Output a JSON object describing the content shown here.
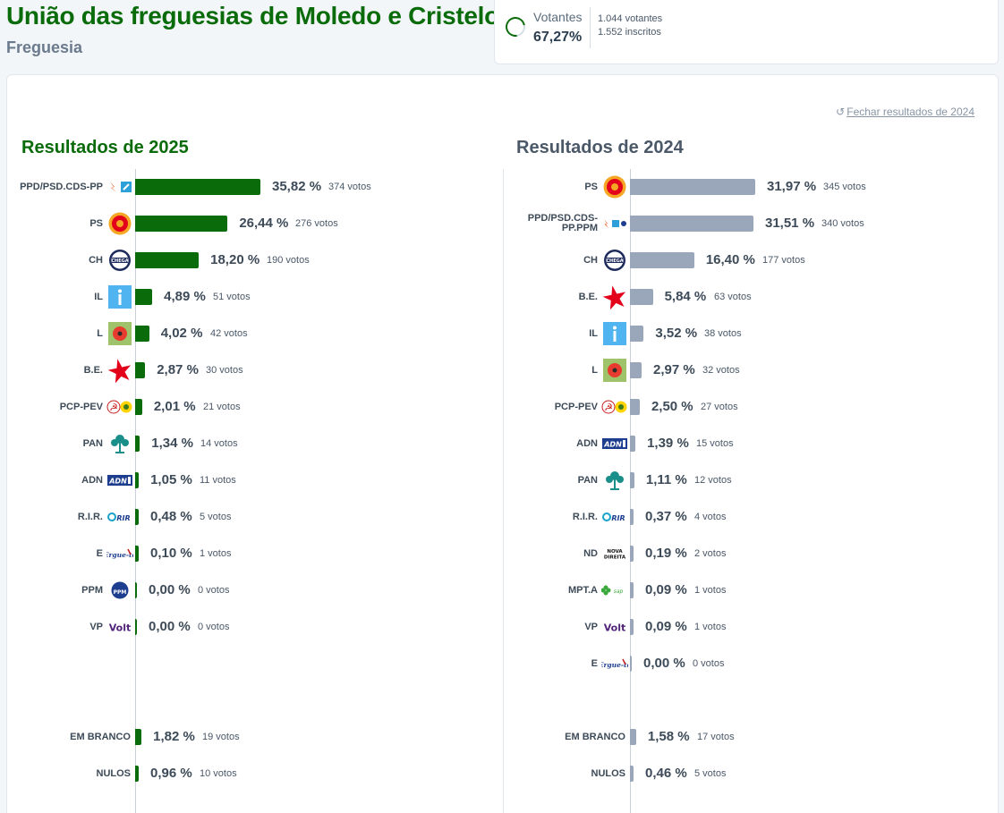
{
  "header": {
    "title": "União das freguesias de Moledo e Cristelo",
    "subtitle": "Freguesia"
  },
  "turnout": {
    "label": "Votantes",
    "percent": "67,27%",
    "percent_value": 67.27,
    "votes": "1.044 votantes",
    "registered": "1.552 inscritos"
  },
  "close_link": "Fechar resultados de 2024",
  "colors": {
    "accent_2025": "#0a6b0a",
    "bar_2024": "#9aa6ba"
  },
  "chart_data": [
    {
      "type": "bar",
      "title": "Resultados de 2025",
      "max_percent": 35.82,
      "rows": [
        {
          "party": "PPD/PSD.CDS-PP",
          "logo": "psd-cds-logo",
          "percent": 35.82,
          "percent_label": "35,82 %",
          "votes_label": "374 votos"
        },
        {
          "party": "PS",
          "logo": "ps-logo",
          "percent": 26.44,
          "percent_label": "26,44 %",
          "votes_label": "276 votos"
        },
        {
          "party": "CH",
          "logo": "chega-logo",
          "percent": 18.2,
          "percent_label": "18,20 %",
          "votes_label": "190 votos"
        },
        {
          "party": "IL",
          "logo": "il-logo",
          "percent": 4.89,
          "percent_label": "4,89 %",
          "votes_label": "51 votos"
        },
        {
          "party": "L",
          "logo": "livre-logo",
          "percent": 4.02,
          "percent_label": "4,02 %",
          "votes_label": "42 votos"
        },
        {
          "party": "B.E.",
          "logo": "be-star-logo",
          "percent": 2.87,
          "percent_label": "2,87 %",
          "votes_label": "30 votos"
        },
        {
          "party": "PCP-PEV",
          "logo": "pcp-pev-logo",
          "percent": 2.01,
          "percent_label": "2,01 %",
          "votes_label": "21 votos"
        },
        {
          "party": "PAN",
          "logo": "pan-tree-logo",
          "percent": 1.34,
          "percent_label": "1,34 %",
          "votes_label": "14 votos"
        },
        {
          "party": "ADN",
          "logo": "adn-logo",
          "percent": 1.05,
          "percent_label": "1,05 %",
          "votes_label": "11 votos"
        },
        {
          "party": "R.I.R.",
          "logo": "rir-logo",
          "percent": 0.48,
          "percent_label": "0,48 %",
          "votes_label": "5 votos"
        },
        {
          "party": "E",
          "logo": "ergue-te-logo",
          "percent": 0.1,
          "percent_label": "0,10 %",
          "votes_label": "1 votos"
        },
        {
          "party": "PPM",
          "logo": "ppm-logo",
          "percent": 0.0,
          "percent_label": "0,00 %",
          "votes_label": "0 votos"
        },
        {
          "party": "VP",
          "logo": "volt-logo",
          "percent": 0.0,
          "percent_label": "0,00 %",
          "votes_label": "0 votos"
        }
      ],
      "extra": [
        {
          "party": "EM BRANCO",
          "percent": 1.82,
          "percent_label": "1,82 %",
          "votes_label": "19 votos"
        },
        {
          "party": "NULOS",
          "percent": 0.96,
          "percent_label": "0,96 %",
          "votes_label": "10 votos"
        }
      ]
    },
    {
      "type": "bar",
      "title": "Resultados de 2024",
      "max_percent": 31.97,
      "rows": [
        {
          "party": "PS",
          "logo": "ps-logo",
          "percent": 31.97,
          "percent_label": "31,97 %",
          "votes_label": "345 votos"
        },
        {
          "party": "PPD/PSD.CDS-PP.PPM",
          "party_lines": [
            "PPD/PSD.CDS-",
            "PP.PPM"
          ],
          "logo": "ad-logo",
          "percent": 31.51,
          "percent_label": "31,51 %",
          "votes_label": "340 votos"
        },
        {
          "party": "CH",
          "logo": "chega-logo",
          "percent": 16.4,
          "percent_label": "16,40 %",
          "votes_label": "177 votos"
        },
        {
          "party": "B.E.",
          "logo": "be-star-logo",
          "percent": 5.84,
          "percent_label": "5,84 %",
          "votes_label": "63 votos"
        },
        {
          "party": "IL",
          "logo": "il-logo",
          "percent": 3.52,
          "percent_label": "3,52 %",
          "votes_label": "38 votos"
        },
        {
          "party": "L",
          "logo": "livre-logo",
          "percent": 2.97,
          "percent_label": "2,97 %",
          "votes_label": "32 votos"
        },
        {
          "party": "PCP-PEV",
          "logo": "pcp-pev-logo",
          "percent": 2.5,
          "percent_label": "2,50 %",
          "votes_label": "27 votos"
        },
        {
          "party": "ADN",
          "logo": "adn-logo",
          "percent": 1.39,
          "percent_label": "1,39 %",
          "votes_label": "15 votos"
        },
        {
          "party": "PAN",
          "logo": "pan-tree-logo",
          "percent": 1.11,
          "percent_label": "1,11 %",
          "votes_label": "12 votos"
        },
        {
          "party": "R.I.R.",
          "logo": "rir-logo",
          "percent": 0.37,
          "percent_label": "0,37 %",
          "votes_label": "4 votos"
        },
        {
          "party": "ND",
          "logo": "nova-direita-logo",
          "percent": 0.19,
          "percent_label": "0,19 %",
          "votes_label": "2 votos"
        },
        {
          "party": "MPT.A",
          "logo": "mpt-logo",
          "percent": 0.09,
          "percent_label": "0,09 %",
          "votes_label": "1 votos"
        },
        {
          "party": "VP",
          "logo": "volt-logo",
          "percent": 0.09,
          "percent_label": "0,09 %",
          "votes_label": "1 votos"
        },
        {
          "party": "E",
          "logo": "ergue-te-logo",
          "percent": 0.0,
          "percent_label": "0,00 %",
          "votes_label": "0 votos"
        }
      ],
      "extra": [
        {
          "party": "EM BRANCO",
          "percent": 1.58,
          "percent_label": "1,58 %",
          "votes_label": "17 votos"
        },
        {
          "party": "NULOS",
          "percent": 0.46,
          "percent_label": "0,46 %",
          "votes_label": "5 votos"
        }
      ]
    }
  ]
}
